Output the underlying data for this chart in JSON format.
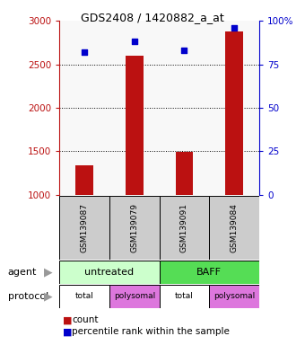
{
  "title": "GDS2408 / 1420882_a_at",
  "samples": [
    "GSM139087",
    "GSM139079",
    "GSM139091",
    "GSM139084"
  ],
  "bar_values": [
    1340,
    2600,
    1490,
    2880
  ],
  "scatter_pct": [
    82,
    88,
    83,
    96
  ],
  "bar_color": "#bb1111",
  "scatter_color": "#0000cc",
  "ylim_left": [
    1000,
    3000
  ],
  "ylim_right": [
    0,
    100
  ],
  "yticks_left": [
    1000,
    1500,
    2000,
    2500,
    3000
  ],
  "yticks_right": [
    0,
    25,
    50,
    75,
    100
  ],
  "ytick_labels_left": [
    "1000",
    "1500",
    "2000",
    "2500",
    "3000"
  ],
  "ytick_labels_right": [
    "0",
    "25",
    "50",
    "75",
    "100%"
  ],
  "agent_splits": [
    [
      0,
      2,
      "untreated",
      "#ccffcc"
    ],
    [
      2,
      4,
      "BAFF",
      "#55dd55"
    ]
  ],
  "protocol_data": [
    [
      0,
      "#ffffff",
      "total"
    ],
    [
      1,
      "#dd77dd",
      "polysomal"
    ],
    [
      2,
      "#ffffff",
      "total"
    ],
    [
      3,
      "#dd77dd",
      "polysomal"
    ]
  ],
  "legend_count_label": "count",
  "legend_pct_label": "percentile rank within the sample",
  "agent_label": "agent",
  "protocol_label": "protocol",
  "sample_box_color": "#cccccc",
  "arrow_color": "#999999"
}
